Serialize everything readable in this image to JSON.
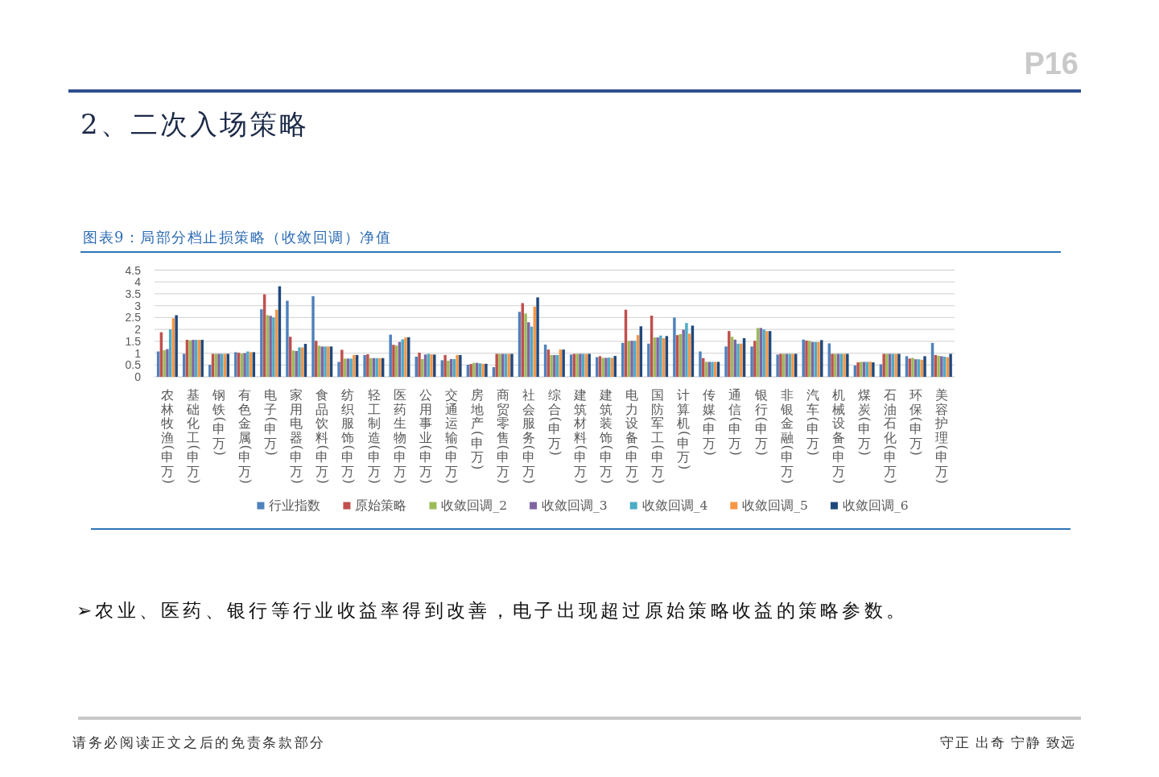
{
  "chart_data": {
    "type": "bar",
    "title": "2、二次入场策略",
    "subtitle": "图表9：局部分档止损策略（收敛回调）净值",
    "categories": [
      "农林牧渔(申万)",
      "基础化工(申万)",
      "钢铁(申万)",
      "有色金属(申万)",
      "电子(申万)",
      "家用电器(申万)",
      "食品饮料(申万)",
      "纺织服饰(申万)",
      "轻工制造(申万)",
      "医药生物(申万)",
      "公用事业(申万)",
      "交通运输(申万)",
      "房地产(申万)",
      "商贸零售(申万)",
      "社会服务(申万)",
      "综合(申万)",
      "建筑材料(申万)",
      "建筑装饰(申万)",
      "电力设备(申万)",
      "国防军工(申万)",
      "计算机(申万)",
      "传媒(申万)",
      "通信(申万)",
      "银行(申万)",
      "非银金融(申万)",
      "汽车(申万)",
      "机械设备(申万)",
      "煤炭(申万)",
      "石油石化(申万)",
      "环保(申万)",
      "美容护理(申万)"
    ],
    "series": [
      {
        "name": "行业指数",
        "color": "#4f81bd",
        "values": [
          1.07,
          0.97,
          0.51,
          1.04,
          2.85,
          3.21,
          3.4,
          0.63,
          0.92,
          1.78,
          0.85,
          0.7,
          0.51,
          0.41,
          2.74,
          1.36,
          0.94,
          0.83,
          1.43,
          1.4,
          2.5,
          1.07,
          1.28,
          1.28,
          0.94,
          1.57,
          1.41,
          0.48,
          0.53,
          0.87,
          1.43
        ]
      },
      {
        "name": "原始策略",
        "color": "#c0504d",
        "values": [
          1.88,
          1.56,
          0.97,
          1.02,
          3.48,
          1.69,
          1.52,
          1.14,
          0.95,
          1.35,
          1.02,
          0.92,
          0.54,
          0.97,
          3.11,
          1.15,
          0.97,
          0.87,
          2.83,
          2.58,
          1.76,
          0.79,
          1.93,
          1.52,
          0.97,
          1.53,
          0.97,
          0.61,
          0.97,
          0.77,
          0.92
        ]
      },
      {
        "name": "收敛回调_2",
        "color": "#9bbb59",
        "values": [
          1.12,
          1.54,
          0.97,
          0.98,
          2.6,
          1.11,
          1.31,
          0.77,
          0.79,
          1.32,
          0.75,
          0.68,
          0.59,
          0.97,
          2.67,
          0.92,
          0.97,
          0.8,
          1.52,
          1.66,
          1.8,
          0.63,
          1.69,
          2.06,
          0.97,
          1.52,
          0.97,
          0.63,
          0.97,
          0.8,
          0.89
        ]
      },
      {
        "name": "收敛回调_3",
        "color": "#8064a2",
        "values": [
          1.17,
          1.56,
          0.97,
          1.0,
          2.57,
          1.09,
          1.28,
          0.77,
          0.79,
          1.47,
          0.94,
          0.75,
          0.59,
          0.97,
          2.3,
          0.92,
          0.97,
          0.8,
          1.52,
          1.66,
          1.99,
          0.63,
          1.57,
          2.06,
          0.97,
          1.47,
          0.97,
          0.63,
          0.97,
          0.74,
          0.87
        ]
      },
      {
        "name": "收敛回调_4",
        "color": "#4bacc6",
        "values": [
          2.0,
          1.56,
          0.97,
          1.07,
          2.51,
          1.24,
          1.28,
          0.77,
          0.79,
          1.58,
          0.97,
          0.75,
          0.57,
          0.97,
          2.12,
          0.92,
          0.97,
          0.81,
          1.52,
          1.74,
          2.27,
          0.63,
          1.4,
          2.0,
          0.97,
          1.47,
          0.97,
          0.63,
          0.97,
          0.74,
          0.85
        ]
      },
      {
        "name": "收敛回调_5",
        "color": "#f79646",
        "values": [
          2.47,
          1.56,
          0.97,
          1.04,
          2.83,
          1.24,
          1.28,
          0.92,
          0.79,
          1.66,
          0.95,
          0.92,
          0.55,
          0.97,
          2.96,
          1.15,
          0.97,
          0.8,
          1.76,
          1.63,
          1.82,
          0.63,
          1.4,
          1.93,
          0.97,
          1.47,
          0.97,
          0.64,
          0.97,
          0.72,
          0.83
        ]
      },
      {
        "name": "收敛回调_6",
        "color": "#1f497d",
        "values": [
          2.6,
          1.56,
          0.97,
          1.04,
          3.82,
          1.39,
          1.28,
          0.92,
          0.79,
          1.67,
          0.94,
          0.92,
          0.55,
          0.97,
          3.35,
          1.15,
          0.97,
          0.88,
          2.13,
          1.72,
          2.16,
          0.63,
          1.63,
          1.93,
          0.97,
          1.55,
          0.97,
          0.61,
          0.97,
          0.87,
          0.97
        ]
      }
    ],
    "ylim": [
      0,
      4.5
    ],
    "yticks": [
      0,
      0.5,
      1,
      1.5,
      2,
      2.5,
      3,
      3.5,
      4,
      4.5
    ],
    "grid": "y",
    "legend": "bottom",
    "annotations": [
      "➢农业、医药、银行等行业收益率得到改善，电子出现超过原始策略收益的策略参数。",
      "请务必阅读正文之后的免责条款部分",
      "守正 出奇 宁静 致远",
      "P16"
    ]
  }
}
